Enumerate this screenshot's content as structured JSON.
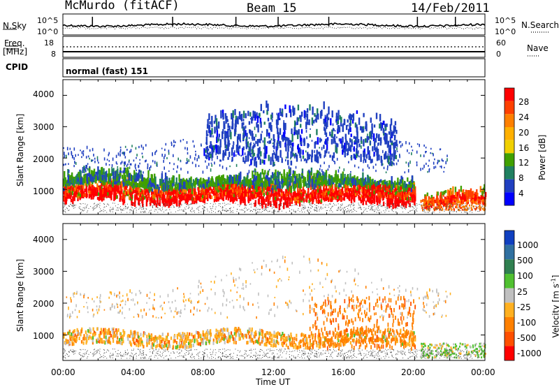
{
  "header": {
    "station": "McMurdo (fitACF)",
    "beam": "Beam 15",
    "date": "14/Feb/2011"
  },
  "top_panels": {
    "nsky_label": "N.Sky",
    "nsky_ticks": [
      "10^5",
      "10^0"
    ],
    "nsearch_label": "N.Search",
    "nsearch_ticks": [
      "10^5",
      "10^0"
    ],
    "freq_label": "Freq.",
    "freq_unit": "[MHz]",
    "freq_ticks": [
      "18",
      "8"
    ],
    "nave_label": "Nave",
    "nave_ticks": [
      "60",
      "0"
    ],
    "cpid_label": "CPID",
    "cpid_value": "normal (fast) 151"
  },
  "axes": {
    "ylabel": "Slant Range [km]",
    "xlabel": "Time UT",
    "yticks": [
      "4000",
      "3000",
      "2000",
      "1000"
    ],
    "xticks": [
      "00:00",
      "04:00",
      "08:00",
      "12:00",
      "16:00",
      "20:00",
      "00:00"
    ]
  },
  "power_scale": {
    "title": "Power [dB]",
    "labels": [
      "28",
      "24",
      "20",
      "16",
      "12",
      "8",
      "4"
    ],
    "colors": [
      "#ff0000",
      "#ff4000",
      "#ff8000",
      "#ffb000",
      "#f0d000",
      "#40a000",
      "#208060",
      "#2040c0",
      "#0000ff"
    ]
  },
  "velocity_scale": {
    "title": "Velocity [m s",
    "title_sup": "-1",
    "title_end": "]",
    "labels": [
      "1000",
      "500",
      "100",
      "25",
      "-25",
      "-100",
      "-500",
      "-1000"
    ],
    "colors": [
      "#1040c0",
      "#3070a0",
      "#308050",
      "#50c030",
      "#c0c0c0",
      "#ffb020",
      "#ff8000",
      "#ff5000",
      "#ff0000"
    ]
  },
  "chart_data": [
    {
      "type": "heatmap",
      "title": "Power",
      "xlabel": "Time UT",
      "ylabel": "Slant Range [km]",
      "xlim": [
        "00:00",
        "24:00"
      ],
      "ylim": [
        200,
        4500
      ],
      "colorbar_label": "Power [dB]",
      "colorbar_ticks": [
        4,
        8,
        12,
        16,
        20,
        24,
        28
      ],
      "bands": [
        {
          "range_km": [
            500,
            1100
          ],
          "time_span_h": [
            0,
            20
          ],
          "level_db": 28
        },
        {
          "range_km": [
            1000,
            1300
          ],
          "time_span_h": [
            0,
            20
          ],
          "level_db": 12
        },
        {
          "range_km": [
            1800,
            3400
          ],
          "time_span_h": [
            8,
            19
          ],
          "level_db": 6
        },
        {
          "range_km": [
            400,
            700
          ],
          "time_span_h": [
            20.5,
            24
          ],
          "level_db": 24
        }
      ]
    },
    {
      "type": "heatmap",
      "title": "Velocity",
      "xlabel": "Time UT",
      "ylabel": "Slant Range [km]",
      "xlim": [
        "00:00",
        "24:00"
      ],
      "ylim": [
        200,
        4500
      ],
      "colorbar_label": "Velocity [m s-1]",
      "colorbar_ticks": [
        -1000,
        -500,
        -100,
        -25,
        25,
        100,
        500,
        1000
      ],
      "bands": [
        {
          "range_km": [
            500,
            1200
          ],
          "time_span_h": [
            0,
            20
          ],
          "level_ms": -100
        },
        {
          "range_km": [
            1800,
            2500
          ],
          "time_span_h": [
            8,
            19
          ],
          "level_ms": 0
        },
        {
          "range_km": [
            500,
            2000
          ],
          "time_span_h": [
            14,
            20
          ],
          "level_ms": -500
        },
        {
          "range_km": [
            300,
            700
          ],
          "time_span_h": [
            20.5,
            24
          ],
          "level_ms": 100
        }
      ]
    }
  ]
}
